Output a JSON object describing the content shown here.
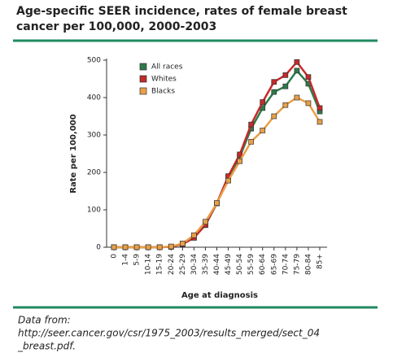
{
  "chart_data": {
    "type": "line",
    "title_lines": [
      "Age-specific SEER incidence, rates of female breast",
      "cancer per 100,000, 2000-2003"
    ],
    "x_label": "Age at diagnosis",
    "y_label": "Rate per 100,000",
    "categories": [
      "0",
      "1-4",
      "5-9",
      "10-14",
      "15-19",
      "20-24",
      "25-29",
      "30-34",
      "35-39",
      "40-44",
      "45-49",
      "50-54",
      "55-59",
      "60-64",
      "65-69",
      "70-74",
      "75-79",
      "80-84",
      "85+"
    ],
    "series": [
      {
        "name": "All races",
        "color": "#2e7a4a",
        "values": [
          0,
          0,
          0,
          0,
          0,
          1,
          9,
          26,
          59,
          117,
          187,
          241,
          317,
          372,
          415,
          430,
          472,
          437,
          363
        ]
      },
      {
        "name": "Whites",
        "color": "#c42a2a",
        "values": [
          0,
          0,
          0,
          0,
          0,
          1,
          8,
          25,
          60,
          118,
          190,
          248,
          328,
          388,
          442,
          460,
          495,
          455,
          372
        ]
      },
      {
        "name": "Blacks",
        "color": "#e8a048",
        "values": [
          0,
          0,
          0,
          0,
          0,
          2,
          10,
          32,
          68,
          118,
          178,
          230,
          282,
          312,
          350,
          380,
          400,
          385,
          335
        ]
      }
    ],
    "ylim": [
      0,
      500
    ],
    "yticks": [
      0,
      100,
      200,
      300,
      400,
      500
    ],
    "legend": "upper left",
    "source_lines": [
      "Data from:",
      "http://seer.cancer.gov/csr/1975_2003/results_merged/sect_04",
      "_breast.pdf."
    ]
  }
}
